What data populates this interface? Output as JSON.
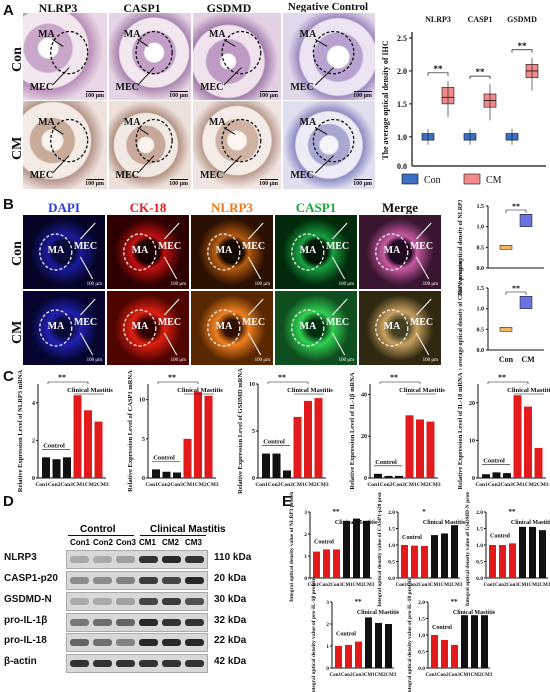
{
  "panels": {
    "A": "A",
    "B": "B",
    "C": "C",
    "D": "D",
    "E": "E"
  },
  "panelA": {
    "columns": [
      "NLRP3",
      "CASP1",
      "GSDMD",
      "Negative Control"
    ],
    "rows": [
      "Con",
      "CM"
    ],
    "scale": "100 μm",
    "annotations": [
      "MA",
      "MEC"
    ]
  },
  "chartA": {
    "type": "box",
    "title_groups": [
      "NLRP3",
      "CASP1",
      "GSDMD"
    ],
    "ylabel": "The average optical density of IHC",
    "yticks": [
      "0.0",
      "1.0",
      "1.5",
      "2.0",
      "2.5"
    ],
    "sig": "**",
    "legend": [
      "Con",
      "CM"
    ],
    "colors": {
      "con": "#3a6fc4",
      "cm": "#f08a8a"
    }
  },
  "panelB": {
    "columns": [
      "DAPI",
      "CK-18",
      "NLRP3",
      "CASP1",
      "Merge"
    ],
    "column_colors": [
      "#2b3cd8",
      "#e02020",
      "#f07818",
      "#19a83c",
      "#111111"
    ],
    "rows": [
      "Con",
      "CM"
    ]
  },
  "chartB1": {
    "ylabel": "The average optical density of NLRP3 protein",
    "yticks": [
      "0.0",
      "0.5",
      "1.0",
      "1.5"
    ],
    "sig": "**"
  },
  "chartB2": {
    "ylabel": "The average optical density of CASP1 protein",
    "yticks": [
      "0.0",
      "0.5",
      "1.0",
      "1.5"
    ],
    "sig": "**",
    "xlabels": [
      "Con",
      "CM"
    ]
  },
  "panelC": {
    "charts": [
      {
        "ylabel": "Relative Expression Level of NLRP3 mRNA",
        "yticks": [
          "0",
          "2",
          "4"
        ]
      },
      {
        "ylabel": "Relative Expression Level of CASP1 mRNA",
        "yticks": [
          "0",
          "5",
          "10"
        ]
      },
      {
        "ylabel": "Relative Expression Level of GSDMD mRNA",
        "yticks": [
          "0",
          "5",
          "10"
        ]
      },
      {
        "ylabel": "Relative Expression Level of IL-1β mRNA",
        "yticks": [
          "0",
          "20",
          "40"
        ]
      },
      {
        "ylabel": "Relative Expression Level of IL-18 mRNA",
        "yticks": [
          "0",
          "10",
          "20"
        ]
      }
    ],
    "control": "Control",
    "mastitis": "Clinical Mastitis",
    "xlabels": "Con1Con2Con3CM1CM2CM3",
    "sig": "**"
  },
  "panelD": {
    "control": "Control",
    "mastitis": "Clinical Mastitis",
    "lanes": [
      "Con1",
      "Con2",
      "Con3",
      "CM1",
      "CM2",
      "CM3"
    ],
    "proteins": [
      "NLRP3",
      "CASP1-p20",
      "GSDMD-N",
      "pro-IL-1β",
      "pro-IL-18",
      "β-actin"
    ],
    "sizes": [
      "110 kDa",
      "20 kDa",
      "30 kDa",
      "32 kDa",
      "22 kDa",
      "42 kDa"
    ]
  },
  "panelE": {
    "charts": [
      {
        "ylabel": "Integral optical density value of NLRP3 protein",
        "yticks": [
          "0",
          "1",
          "2",
          "3"
        ],
        "sig": "**"
      },
      {
        "ylabel": "Integral optical density value of CASP1-p20 protein",
        "yticks": [
          "0.0",
          "0.5",
          "1.0",
          "1.5",
          "2.0"
        ],
        "sig": "*"
      },
      {
        "ylabel": "Integral optical density value of GSDMD-N protein",
        "yticks": [
          "0.0",
          "0.5",
          "1.0",
          "1.5",
          "2.0"
        ],
        "sig": "**"
      },
      {
        "ylabel": "Integral optical density value of pro-IL-1β protein",
        "yticks": [
          "0",
          "1",
          "2",
          "3"
        ],
        "sig": "**"
      },
      {
        "ylabel": "Integral optical density value of pro-IL-18 protein",
        "yticks": [
          "0.0",
          "0.5",
          "1.0",
          "1.5",
          "2.0"
        ],
        "sig": "**"
      }
    ],
    "control": "Control",
    "mastitis": "Clinical Mastitis",
    "xlabels": "Con1Con2Con3CM1CM2CM3"
  },
  "chart_data": [
    {
      "type": "box",
      "name": "A",
      "series": [
        {
          "name": "Con",
          "values": [
            1.0,
            1.0,
            1.0
          ]
        },
        {
          "name": "CM",
          "values": [
            1.6,
            1.55,
            2.0
          ]
        }
      ],
      "categories": [
        "NLRP3",
        "CASP1",
        "GSDMD"
      ]
    },
    {
      "type": "bar",
      "name": "C1",
      "categories": [
        "Con1",
        "Con2",
        "Con3",
        "CM1",
        "CM2",
        "CM3"
      ],
      "values": [
        1.1,
        1.0,
        1.1,
        4.4,
        3.6,
        3.0
      ]
    },
    {
      "type": "bar",
      "name": "C2",
      "categories": [
        "Con1",
        "Con2",
        "Con3",
        "CM1",
        "CM2",
        "CM3"
      ],
      "values": [
        1.1,
        0.8,
        0.7,
        5.0,
        11.0,
        10.5
      ]
    },
    {
      "type": "bar",
      "name": "C3",
      "categories": [
        "Con1",
        "Con2",
        "Con3",
        "CM1",
        "CM2",
        "CM3"
      ],
      "values": [
        2.6,
        2.6,
        0.8,
        6.5,
        8.2,
        8.5
      ]
    },
    {
      "type": "bar",
      "name": "C4",
      "categories": [
        "Con1",
        "Con2",
        "Con3",
        "CM1",
        "CM2",
        "CM3"
      ],
      "values": [
        2,
        1,
        1,
        30,
        28,
        27
      ]
    },
    {
      "type": "bar",
      "name": "C5",
      "categories": [
        "Con1",
        "Con2",
        "Con3",
        "CM1",
        "CM2",
        "CM3"
      ],
      "values": [
        1,
        1.5,
        1.3,
        22,
        19,
        8
      ]
    },
    {
      "type": "bar",
      "name": "E1",
      "categories": [
        "Con1",
        "Con2",
        "Con3",
        "CM1",
        "CM2",
        "CM3"
      ],
      "values": [
        1.2,
        1.3,
        1.3,
        2.6,
        2.7,
        2.6
      ]
    },
    {
      "type": "bar",
      "name": "E2",
      "categories": [
        "Con1",
        "Con2",
        "Con3",
        "CM1",
        "CM2",
        "CM3"
      ],
      "values": [
        1.0,
        0.98,
        0.97,
        1.3,
        1.35,
        1.6
      ]
    },
    {
      "type": "bar",
      "name": "E3",
      "categories": [
        "Con1",
        "Con2",
        "Con3",
        "CM1",
        "CM2",
        "CM3"
      ],
      "values": [
        1.0,
        1.0,
        1.05,
        1.55,
        1.55,
        1.45
      ]
    },
    {
      "type": "bar",
      "name": "E4",
      "categories": [
        "Con1",
        "Con2",
        "Con3",
        "CM1",
        "CM2",
        "CM3"
      ],
      "values": [
        1.0,
        1.05,
        1.2,
        2.3,
        2.05,
        2.0
      ]
    },
    {
      "type": "bar",
      "name": "E5",
      "categories": [
        "Con1",
        "Con2",
        "Con3",
        "CM1",
        "CM2",
        "CM3"
      ],
      "values": [
        1.0,
        0.85,
        0.7,
        1.6,
        1.6,
        1.6
      ]
    }
  ]
}
